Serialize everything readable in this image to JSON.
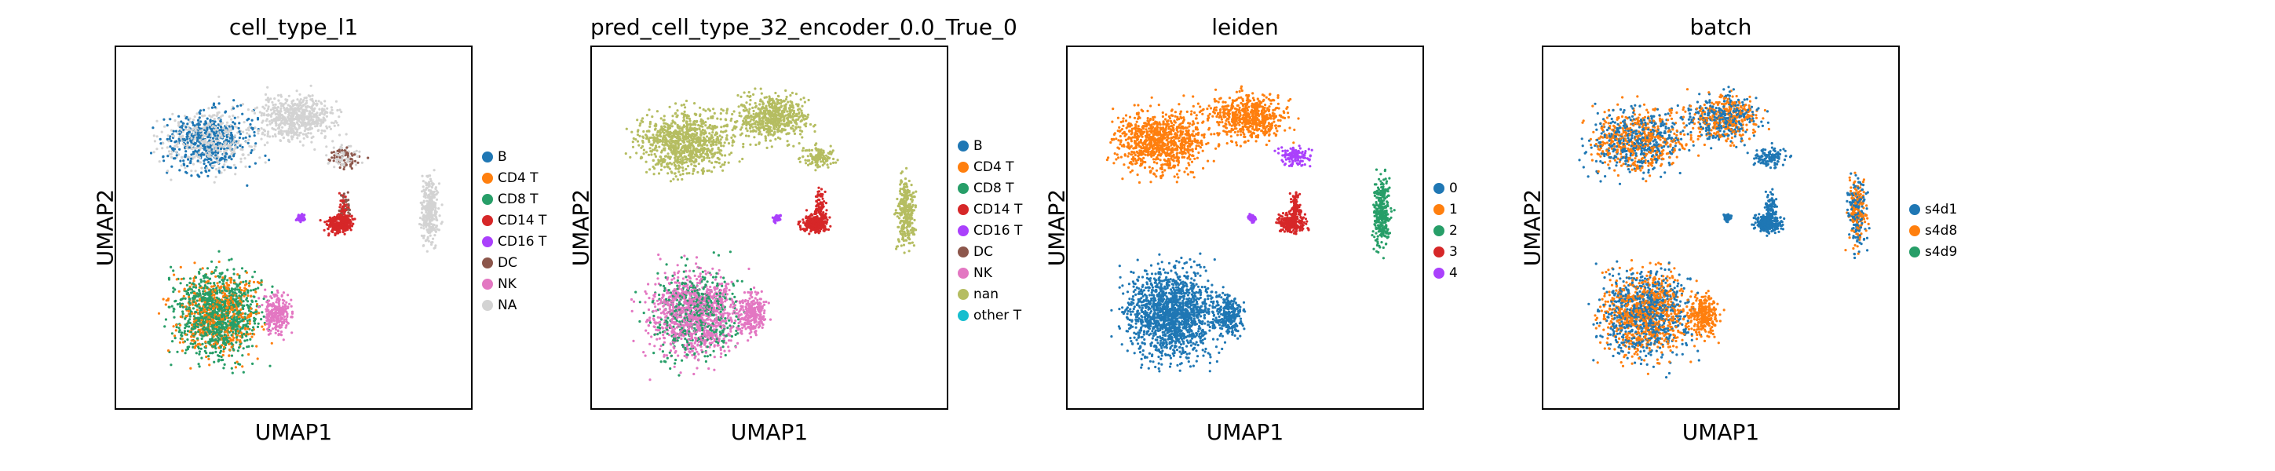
{
  "chart_data": [
    {
      "type": "scatter",
      "title": "cell_type_l1",
      "xlabel": "UMAP1",
      "ylabel": "UMAP2",
      "legend_position": "right",
      "series": [
        {
          "name": "B",
          "color": "#1f77b4"
        },
        {
          "name": "CD4 T",
          "color": "#ff7f0e"
        },
        {
          "name": "CD8 T",
          "color": "#279e68"
        },
        {
          "name": "CD14 T",
          "color": "#d62728"
        },
        {
          "name": "CD16 T",
          "color": "#aa40fc"
        },
        {
          "name": "DC",
          "color": "#8c564b"
        },
        {
          "name": "NK",
          "color": "#e377c2"
        },
        {
          "name": "NA",
          "color": "#d3d3d3"
        }
      ]
    },
    {
      "type": "scatter",
      "title": "pred_cell_type_32_encoder_0.0_True_0",
      "xlabel": "UMAP1",
      "ylabel": "UMAP2",
      "legend_position": "right",
      "series": [
        {
          "name": "B",
          "color": "#1f77b4"
        },
        {
          "name": "CD4 T",
          "color": "#ff7f0e"
        },
        {
          "name": "CD8 T",
          "color": "#279e68"
        },
        {
          "name": "CD14 T",
          "color": "#d62728"
        },
        {
          "name": "CD16 T",
          "color": "#aa40fc"
        },
        {
          "name": "DC",
          "color": "#8c564b"
        },
        {
          "name": "NK",
          "color": "#e377c2"
        },
        {
          "name": "nan",
          "color": "#b5bd61"
        },
        {
          "name": "other T",
          "color": "#17becf"
        }
      ]
    },
    {
      "type": "scatter",
      "title": "leiden",
      "xlabel": "UMAP1",
      "ylabel": "UMAP2",
      "legend_position": "right",
      "series": [
        {
          "name": "0",
          "color": "#1f77b4"
        },
        {
          "name": "1",
          "color": "#ff7f0e"
        },
        {
          "name": "2",
          "color": "#279e68"
        },
        {
          "name": "3",
          "color": "#d62728"
        },
        {
          "name": "4",
          "color": "#aa40fc"
        }
      ]
    },
    {
      "type": "scatter",
      "title": "batch",
      "xlabel": "UMAP1",
      "ylabel": "UMAP2",
      "legend_position": "right",
      "series": [
        {
          "name": "s4d1",
          "color": "#1f77b4"
        },
        {
          "name": "s4d8",
          "color": "#ff7f0e"
        },
        {
          "name": "s4d9",
          "color": "#279e68"
        }
      ]
    }
  ]
}
